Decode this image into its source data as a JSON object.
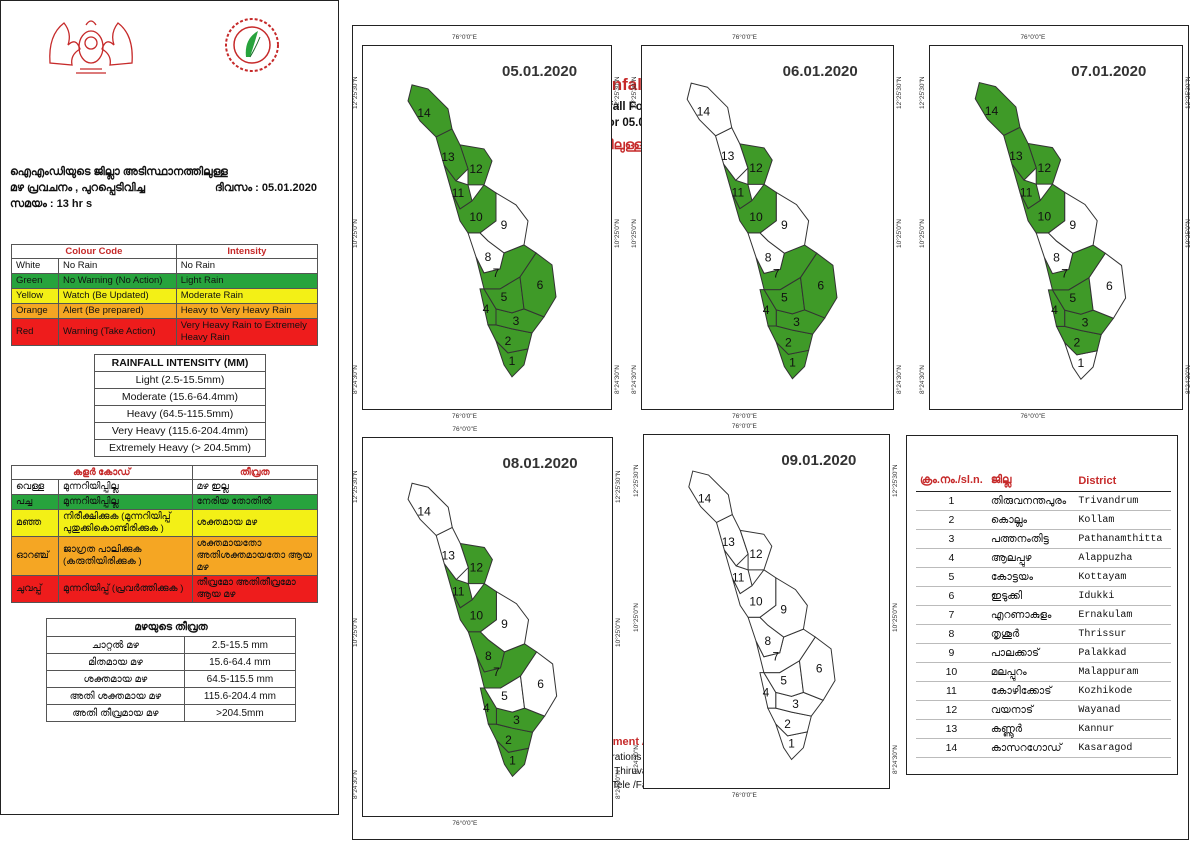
{
  "header": {
    "title": "District Wise Rainfall Forecast",
    "subtitle1": "IMD's District Wise Rainfall Forecast - Kerala",
    "subtitle2": "(as of 13:00 hrs of 05.01.2020  for 05.01.2020  to 09.01.2020)",
    "title_mal": "ജില്ലാ അടിസ്ഥാനത്തിലുള്ള മഴപ്രവചനം"
  },
  "info": {
    "line1": "ഐഎംഡിയുടെ ജില്ലാ    അടിസ്ഥാനത്തിലുള്ള",
    "line2_a": "മഴ പ്രവചനം   , പുറപ്പെടിവിച്ച",
    "line2_b": "ദിവസം : 05.01.2020",
    "line3": "സമയം : 13   hr s"
  },
  "colour_code_table": {
    "head_code": "Colour Code",
    "head_intensity": "Intensity",
    "rows": [
      {
        "colour": "White",
        "code": "No Rain",
        "intensity": "No Rain",
        "bg": "white"
      },
      {
        "colour": "Green",
        "code": "No Warning (No Action)",
        "intensity": "Light Rain",
        "bg": "green"
      },
      {
        "colour": "Yellow",
        "code": "Watch (Be Updated)",
        "intensity": "Moderate Rain",
        "bg": "yellow"
      },
      {
        "colour": "Orange",
        "code": "Alert (Be prepared)",
        "intensity": "Heavy to Very Heavy Rain",
        "bg": "orange"
      },
      {
        "colour": "Red",
        "code": "Warning (Take Action)",
        "intensity": "Very Heavy Rain to Extremely Heavy Rain",
        "bg": "red"
      }
    ]
  },
  "rainfall_intensity": {
    "title": "RAINFALL INTENSITY (MM)",
    "rows": [
      "Light (2.5-15.5mm)",
      "Moderate (15.6-64.4mm)",
      "Heavy (64.5-115.5mm)",
      "Very Heavy (115.6-204.4mm)",
      "Extremely Heavy (> 204.5mm)"
    ]
  },
  "mal_colour_table": {
    "head_code": "കളർ കോഡ്",
    "head_intensity": "തീവ്രത",
    "rows": [
      {
        "colour": "വെള്ള",
        "code": "മുന്നറിയിപ്പില്ല",
        "intensity": "മഴ ഇല്ല",
        "bg": "white"
      },
      {
        "colour": "പച്ച",
        "code": "മുന്നറിയിപ്പില്ല",
        "intensity": "നേരിയ തോതിൽ",
        "bg": "green"
      },
      {
        "colour": "മഞ്ഞ",
        "code": "നിരീക്ഷിക്കുക (മുന്നറിയിപ്പ് പുതുക്കികൊണ്ടിരിക്കുക )",
        "intensity": "ശക്തമായ മഴ",
        "bg": "yellow"
      },
      {
        "colour": "ഓറഞ്ച്",
        "code": "ജാഗ്രത പാലിക്കുക (കരുതിയിരിക്കുക )",
        "intensity": "ശക്തമായതോ അതിശക്തമായതോ ആയ മഴ",
        "bg": "orange"
      },
      {
        "colour": "ചുവപ്പ്",
        "code": "മുന്നറിയിപ്പ് (പ്രവർത്തിക്കുക )",
        "intensity": "തീവ്രമോ അതിതീവ്രമോ ആയ മഴ",
        "bg": "red"
      }
    ]
  },
  "mal_intensity": {
    "title": "മഴയുടെ തീവ്രത",
    "rows": [
      {
        "name": "ചാറ്റൽ മഴ",
        "range": "2.5-15.5 mm"
      },
      {
        "name": "മിതമായ മഴ",
        "range": "15.6-64.4 mm"
      },
      {
        "name": "ശക്തമായ മഴ",
        "range": "64.5-115.5 mm"
      },
      {
        "name": "അതി ശക്തമായ മഴ",
        "range": "115.6-204.4 mm"
      },
      {
        "name": "അതി തീവ്രമായ മഴ",
        "range": ">204.5mm"
      }
    ]
  },
  "footer": {
    "org": "Kerala State Disaster Management Authority (KSDMA)",
    "centre": "Kerala State Emergency Operations Centre (KSEOC)",
    "address": "Obervatory Hills, Vikas Bhavan P O, Thiruvananthapuram - 695033",
    "contact": "Email:seoc.gok@ gmail.com, Tele /Fax:0471-2364424"
  },
  "map_ticks": {
    "lon": "76°0'0\"E",
    "lat_top": "12°25'30\"N",
    "lat_mid": "10°25'0\"N",
    "lat_bot": "8°24'30\"N"
  },
  "maps": [
    {
      "date": "05.01.2020",
      "green": [
        1,
        2,
        3,
        4,
        5,
        6,
        7,
        10,
        11,
        12,
        13,
        14
      ]
    },
    {
      "date": "06.01.2020",
      "green": [
        1,
        2,
        3,
        4,
        5,
        6,
        7,
        10,
        11,
        12
      ]
    },
    {
      "date": "07.01.2020",
      "green": [
        2,
        3,
        4,
        5,
        7,
        10,
        11,
        12,
        13,
        14
      ]
    },
    {
      "date": "08.01.2020",
      "green": [
        1,
        2,
        3,
        4,
        7,
        8,
        10,
        11,
        12
      ]
    },
    {
      "date": "09.01.2020",
      "green": []
    }
  ],
  "colors": {
    "green": "#3f9a28",
    "white": "#ffffff",
    "accent_red": "#c62a2a"
  },
  "district_table": {
    "head_no": "ക്രം.നം./sl.n.",
    "head_mal": "ജില്ല",
    "head_eng": "District",
    "rows": [
      {
        "no": "1",
        "mal": "തിരുവനന്തപുരം",
        "eng": "Trivandrum"
      },
      {
        "no": "2",
        "mal": "കൊല്ലം",
        "eng": "Kollam"
      },
      {
        "no": "3",
        "mal": "പത്തനംതിട്ട",
        "eng": "Pathanamthitta"
      },
      {
        "no": "4",
        "mal": "ആലപ്പുഴ",
        "eng": "Alappuzha"
      },
      {
        "no": "5",
        "mal": "കോട്ടയം",
        "eng": "Kottayam"
      },
      {
        "no": "6",
        "mal": "ഇടുക്കി",
        "eng": "Idukki"
      },
      {
        "no": "7",
        "mal": "എറണാകുളം",
        "eng": "Ernakulam"
      },
      {
        "no": "8",
        "mal": "തൃശൂർ",
        "eng": "Thrissur"
      },
      {
        "no": "9",
        "mal": "പാലക്കാട്",
        "eng": "Palakkad"
      },
      {
        "no": "10",
        "mal": "മലപ്പുറം",
        "eng": "Malappuram"
      },
      {
        "no": "11",
        "mal": "കോഴിക്കോട്",
        "eng": "Kozhikode"
      },
      {
        "no": "12",
        "mal": "വയനാട്",
        "eng": "Wayanad"
      },
      {
        "no": "13",
        "mal": "കണ്ണൂർ",
        "eng": "Kannur"
      },
      {
        "no": "14",
        "mal": "കാസറഗോഡ്",
        "eng": "Kasaragod"
      }
    ]
  }
}
